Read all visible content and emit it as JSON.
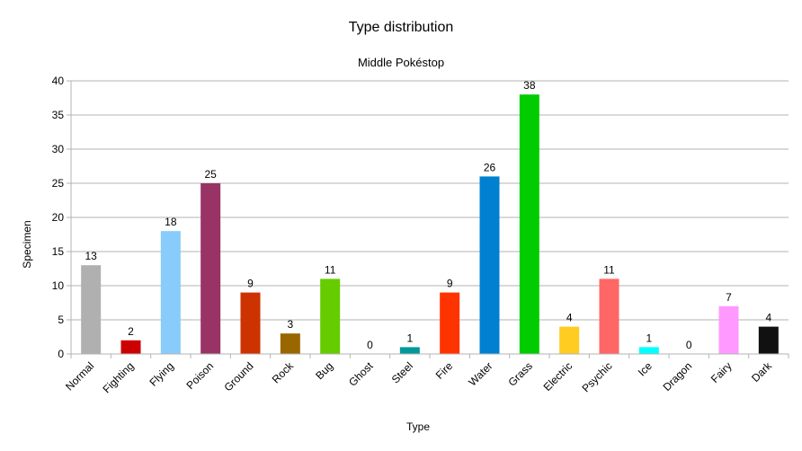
{
  "chart_data": {
    "type": "bar",
    "title": "Type distribution",
    "subtitle": "Middle Pokéstop",
    "xlabel": "Type",
    "ylabel": "Specimen",
    "ylim": [
      0,
      40
    ],
    "yticks": [
      0,
      5,
      10,
      15,
      20,
      25,
      30,
      35,
      40
    ],
    "grid": true,
    "legend": "none",
    "categories": [
      "Normal",
      "Fighting",
      "Flying",
      "Poison",
      "Ground",
      "Rock",
      "Bug",
      "Ghost",
      "Steel",
      "Fire",
      "Water",
      "Grass",
      "Electric",
      "Psychic",
      "Ice",
      "Dragon",
      "Fairy",
      "Dark"
    ],
    "values": [
      13,
      2,
      18,
      25,
      9,
      3,
      11,
      0,
      1,
      9,
      26,
      38,
      4,
      11,
      1,
      0,
      7,
      4
    ],
    "colors": [
      "#b0b0b0",
      "#cc0000",
      "#87ccfa",
      "#993366",
      "#cc3300",
      "#996600",
      "#66cc00",
      "#7f3fbf",
      "#009999",
      "#ff3300",
      "#0080d0",
      "#00cc00",
      "#ffcc22",
      "#ff6666",
      "#00ffff",
      "#5555ff",
      "#ff99ff",
      "#111111"
    ]
  }
}
